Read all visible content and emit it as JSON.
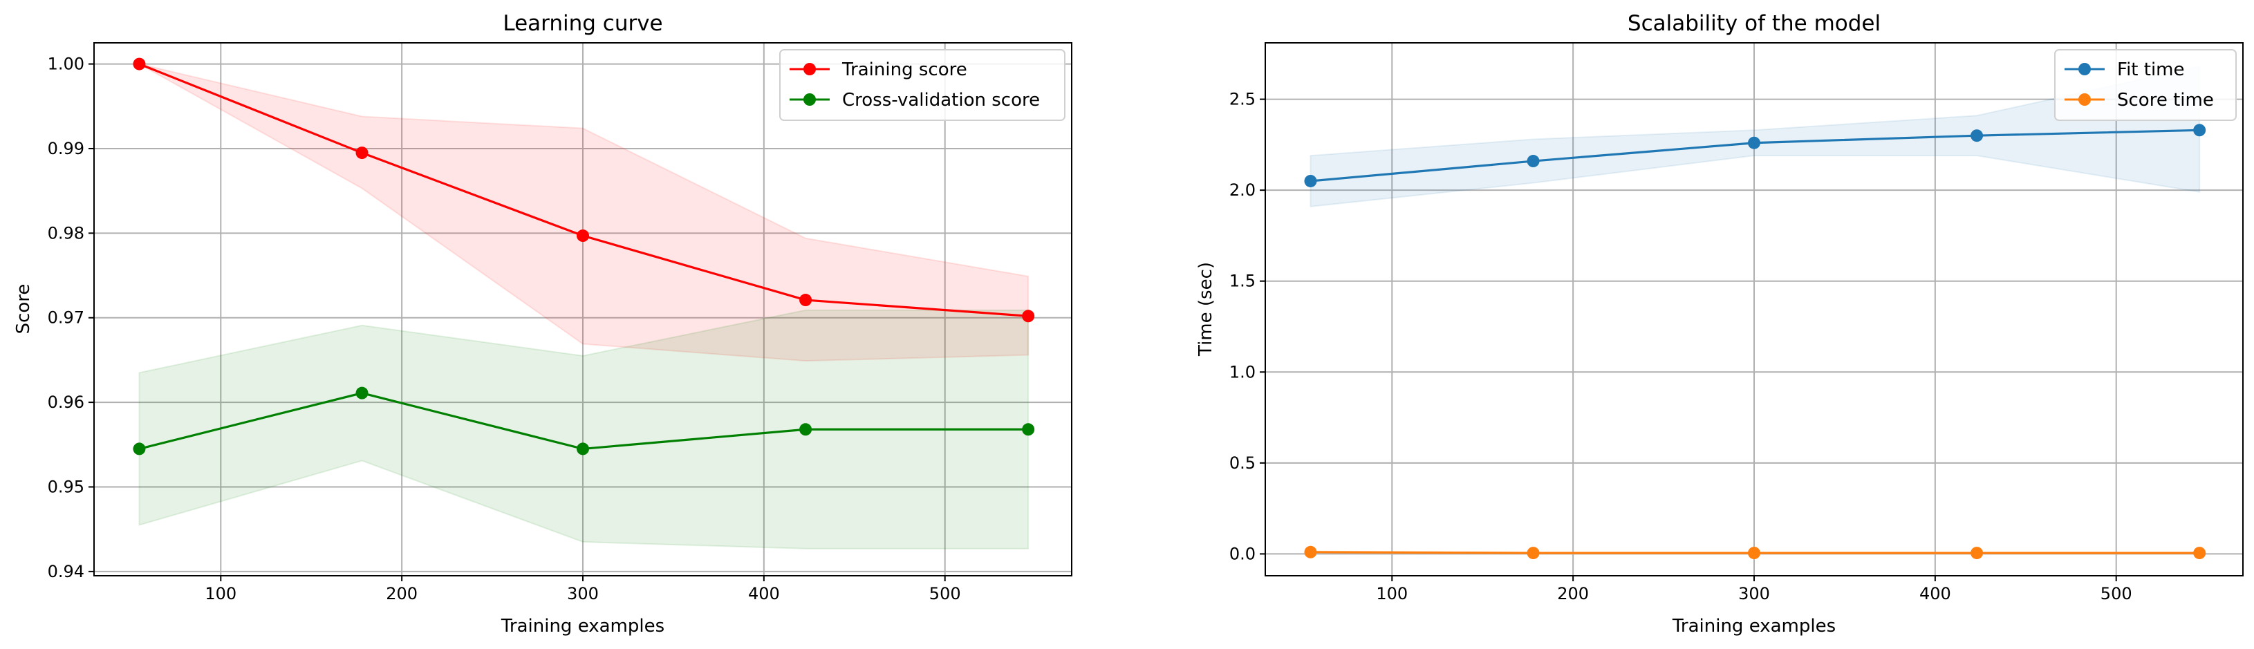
{
  "chart_data": [
    {
      "type": "line",
      "title": "Learning curve",
      "xlabel": "Training examples",
      "ylabel": "Score",
      "xlim": [
        30,
        570
      ],
      "ylim": [
        0.9395,
        1.0025
      ],
      "xticks": [
        100,
        200,
        300,
        400,
        500
      ],
      "yticks": [
        0.94,
        0.95,
        0.96,
        0.97,
        0.98,
        0.99,
        1.0
      ],
      "ytick_labels": [
        "0.94",
        "0.95",
        "0.96",
        "0.97",
        "0.98",
        "0.99",
        "1.00"
      ],
      "grid": true,
      "legend": "top-right",
      "x": [
        55,
        178,
        300,
        423,
        546
      ],
      "series": [
        {
          "name": "Training score",
          "color": "#ff0000",
          "values": [
            1.0,
            0.9895,
            0.9797,
            0.9721,
            0.9702
          ],
          "band_lower": [
            1.0,
            0.9853,
            0.9669,
            0.9649,
            0.9656
          ],
          "band_upper": [
            1.0,
            0.9938,
            0.9924,
            0.9794,
            0.9749
          ]
        },
        {
          "name": "Cross-validation score",
          "color": "#008000",
          "values": [
            0.9545,
            0.9611,
            0.9545,
            0.9568,
            0.9568
          ],
          "band_lower": [
            0.9455,
            0.9531,
            0.9435,
            0.9427,
            0.9427
          ],
          "band_upper": [
            0.9635,
            0.9691,
            0.9655,
            0.9709,
            0.9709
          ]
        }
      ]
    },
    {
      "type": "line",
      "title": "Scalability of the model",
      "xlabel": "Training examples",
      "ylabel": "Time (sec)",
      "xlim": [
        30,
        570
      ],
      "ylim": [
        -0.12,
        2.81
      ],
      "xticks": [
        100,
        200,
        300,
        400,
        500
      ],
      "yticks": [
        0.0,
        0.5,
        1.0,
        1.5,
        2.0,
        2.5
      ],
      "ytick_labels": [
        "0.0",
        "0.5",
        "1.0",
        "1.5",
        "2.0",
        "2.5"
      ],
      "grid": true,
      "legend": "top-right",
      "x": [
        55,
        178,
        300,
        423,
        546
      ],
      "series": [
        {
          "name": "Fit time",
          "color": "#1f77b4",
          "values": [
            2.05,
            2.16,
            2.26,
            2.3,
            2.33
          ],
          "band_lower": [
            1.91,
            2.04,
            2.19,
            2.19,
            1.99
          ],
          "band_upper": [
            2.19,
            2.28,
            2.33,
            2.41,
            2.68
          ]
        },
        {
          "name": "Score time",
          "color": "#ff7f0e",
          "values": [
            0.01,
            0.005,
            0.005,
            0.005,
            0.005
          ],
          "band_lower": [
            0.005,
            0.003,
            0.003,
            0.003,
            0.003
          ],
          "band_upper": [
            0.015,
            0.007,
            0.007,
            0.007,
            0.007
          ]
        }
      ]
    }
  ]
}
